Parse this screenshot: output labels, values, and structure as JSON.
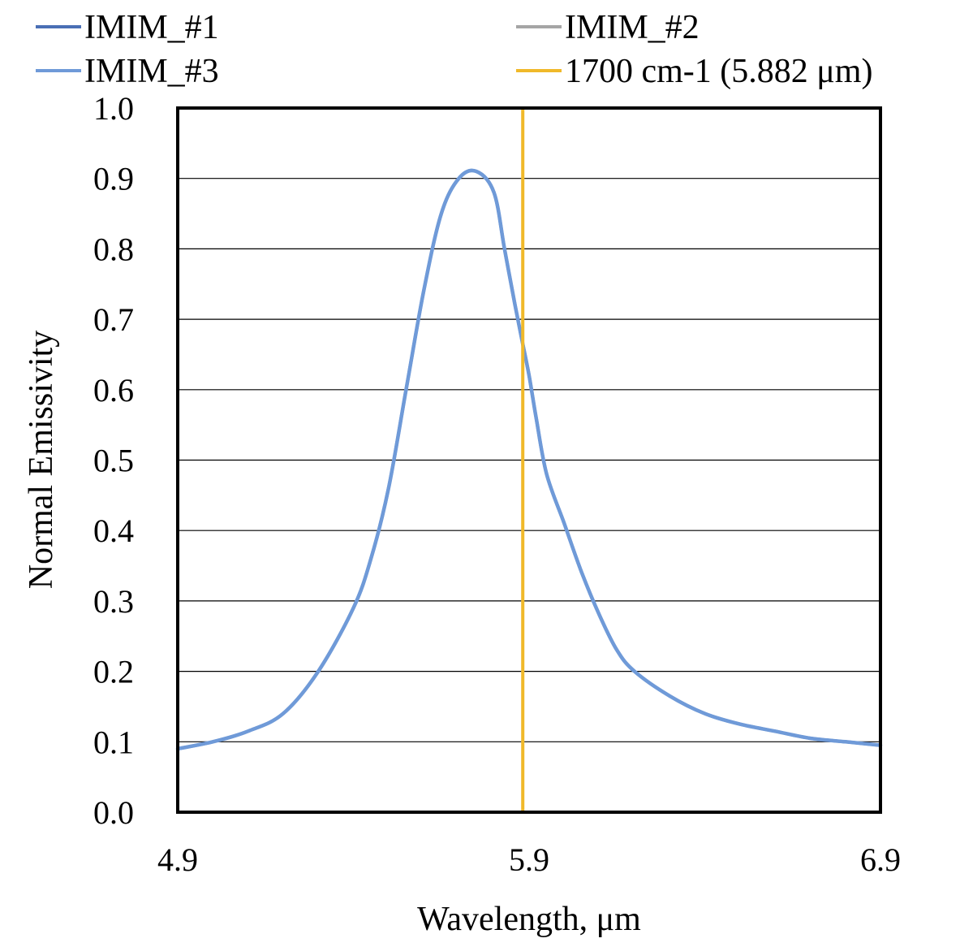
{
  "chart_data": {
    "type": "line",
    "title": "",
    "xlabel": "Wavelength, μm",
    "ylabel": "Normal Emissivity",
    "xlim": [
      4.9,
      6.9
    ],
    "ylim": [
      0.0,
      1.0
    ],
    "x_ticks": [
      "4.9",
      "5.9",
      "6.9"
    ],
    "y_ticks": [
      "0.0",
      "0.1",
      "0.2",
      "0.3",
      "0.4",
      "0.5",
      "0.6",
      "0.7",
      "0.8",
      "0.9",
      "1.0"
    ],
    "grid": "horizontal",
    "legend_position": "top",
    "series": [
      {
        "name": "IMIM_#1",
        "color": "#4a6fb5",
        "x": [
          4.9,
          5.0,
          5.1,
          5.2,
          5.3,
          5.4,
          5.45,
          5.5,
          5.55,
          5.6,
          5.65,
          5.7,
          5.75,
          5.8,
          5.83,
          5.86,
          5.88,
          5.9,
          5.92,
          5.95,
          6.0,
          6.05,
          6.1,
          6.15,
          6.2,
          6.3,
          6.4,
          6.5,
          6.6,
          6.7,
          6.8,
          6.9
        ],
        "y": [
          0.09,
          0.1,
          0.115,
          0.14,
          0.2,
          0.29,
          0.36,
          0.46,
          0.6,
          0.74,
          0.85,
          0.9,
          0.91,
          0.88,
          0.8,
          0.72,
          0.67,
          0.62,
          0.56,
          0.48,
          0.41,
          0.34,
          0.28,
          0.23,
          0.2,
          0.165,
          0.14,
          0.125,
          0.115,
          0.105,
          0.1,
          0.095
        ]
      },
      {
        "name": "IMIM_#2",
        "color": "#a5a5a5",
        "x": [
          4.9,
          5.0,
          5.1,
          5.2,
          5.3,
          5.4,
          5.45,
          5.5,
          5.55,
          5.6,
          5.65,
          5.7,
          5.75,
          5.8,
          5.83,
          5.86,
          5.88,
          5.9,
          5.92,
          5.95,
          6.0,
          6.05,
          6.1,
          6.15,
          6.2,
          6.3,
          6.4,
          6.5,
          6.6,
          6.7,
          6.8,
          6.9
        ],
        "y": [
          0.09,
          0.1,
          0.115,
          0.14,
          0.2,
          0.29,
          0.36,
          0.46,
          0.6,
          0.74,
          0.85,
          0.9,
          0.91,
          0.88,
          0.8,
          0.72,
          0.67,
          0.62,
          0.56,
          0.48,
          0.41,
          0.34,
          0.28,
          0.23,
          0.2,
          0.165,
          0.14,
          0.125,
          0.115,
          0.105,
          0.1,
          0.095
        ]
      },
      {
        "name": "IMIM_#3",
        "color": "#6f9ad8",
        "x": [
          4.9,
          5.0,
          5.1,
          5.2,
          5.3,
          5.4,
          5.45,
          5.5,
          5.55,
          5.6,
          5.65,
          5.7,
          5.75,
          5.8,
          5.83,
          5.86,
          5.88,
          5.9,
          5.92,
          5.95,
          6.0,
          6.05,
          6.1,
          6.15,
          6.2,
          6.3,
          6.4,
          6.5,
          6.6,
          6.7,
          6.8,
          6.9
        ],
        "y": [
          0.09,
          0.1,
          0.115,
          0.14,
          0.2,
          0.29,
          0.36,
          0.46,
          0.6,
          0.74,
          0.85,
          0.9,
          0.91,
          0.88,
          0.8,
          0.72,
          0.67,
          0.62,
          0.56,
          0.48,
          0.41,
          0.34,
          0.28,
          0.23,
          0.2,
          0.165,
          0.14,
          0.125,
          0.115,
          0.105,
          0.1,
          0.095
        ]
      },
      {
        "name": "1700 cm-1 (5.882 μm)",
        "color": "#f0b92a",
        "type": "vertical-line",
        "x": [
          5.882,
          5.882
        ],
        "y": [
          0.0,
          1.0
        ]
      }
    ]
  }
}
